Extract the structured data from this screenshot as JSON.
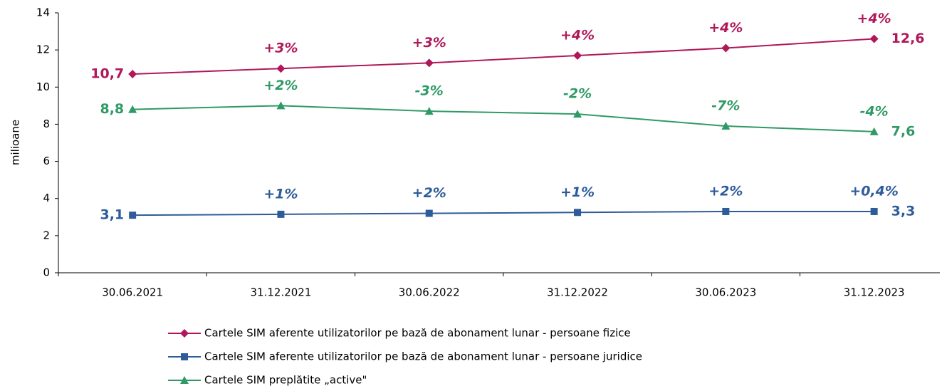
{
  "chart_data": {
    "type": "line",
    "y_label": "milioane",
    "categories": [
      "30.06.2021",
      "31.12.2021",
      "30.06.2022",
      "31.12.2022",
      "30.06.2023",
      "31.12.2023"
    ],
    "series": [
      {
        "name": "Cartele SIM aferente utilizatorilor pe bază de abonament lunar - persoane fizice",
        "color": "#b0185a",
        "marker": "diamond",
        "values": [
          10.7,
          11.0,
          11.3,
          11.7,
          12.1,
          12.6
        ],
        "value_labels": [
          "10,7",
          null,
          null,
          null,
          null,
          "12,6"
        ],
        "change_labels": [
          null,
          "+3%",
          "+3%",
          "+4%",
          "+4%",
          "+4%"
        ]
      },
      {
        "name": "Cartele SIM aferente utilizatorilor pe bază de abonament lunar - persoane juridice",
        "color": "#2e5c9a",
        "marker": "square",
        "values": [
          3.1,
          3.15,
          3.2,
          3.25,
          3.3,
          3.3
        ],
        "value_labels": [
          "3,1",
          null,
          null,
          null,
          null,
          "3,3"
        ],
        "change_labels": [
          null,
          "+1%",
          "+2%",
          "+1%",
          "+2%",
          "+0,4%"
        ]
      },
      {
        "name": "Cartele SIM preplătite „active\"",
        "color": "#2f9a66",
        "marker": "triangle",
        "values": [
          8.8,
          9.0,
          8.7,
          8.55,
          7.9,
          7.6
        ],
        "value_labels": [
          "8,8",
          null,
          null,
          null,
          null,
          "7,6"
        ],
        "change_labels": [
          null,
          "+2%",
          "-3%",
          "-2%",
          "-7%",
          "-4%"
        ]
      }
    ],
    "ylim": [
      0,
      14
    ],
    "yticks": [
      0,
      2,
      4,
      6,
      8,
      10,
      12,
      14
    ],
    "grid": false,
    "legend": "bottom"
  }
}
